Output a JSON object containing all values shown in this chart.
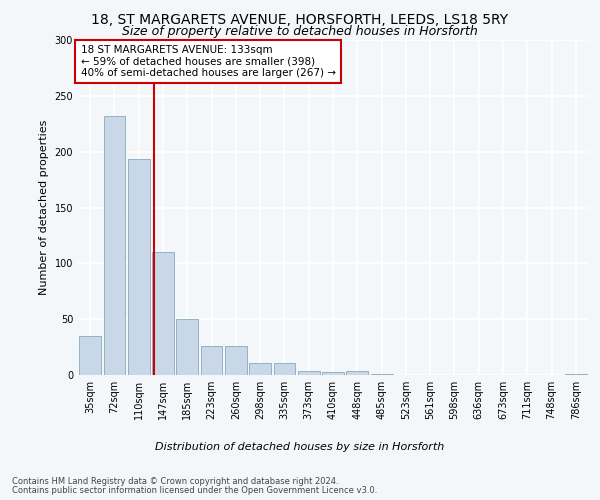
{
  "title1": "18, ST MARGARETS AVENUE, HORSFORTH, LEEDS, LS18 5RY",
  "title2": "Size of property relative to detached houses in Horsforth",
  "xlabel": "Distribution of detached houses by size in Horsforth",
  "ylabel": "Number of detached properties",
  "bar_labels": [
    "35sqm",
    "72sqm",
    "110sqm",
    "147sqm",
    "185sqm",
    "223sqm",
    "260sqm",
    "298sqm",
    "335sqm",
    "373sqm",
    "410sqm",
    "448sqm",
    "485sqm",
    "523sqm",
    "561sqm",
    "598sqm",
    "636sqm",
    "673sqm",
    "711sqm",
    "748sqm",
    "786sqm"
  ],
  "bar_values": [
    35,
    232,
    193,
    110,
    50,
    26,
    26,
    11,
    11,
    4,
    3,
    4,
    1,
    0,
    0,
    0,
    0,
    0,
    0,
    0,
    1
  ],
  "bar_color": "#c8d8e8",
  "bar_edge_color": "#8aaabb",
  "vline_color": "#cc0000",
  "annotation_text": "18 ST MARGARETS AVENUE: 133sqm\n← 59% of detached houses are smaller (398)\n40% of semi-detached houses are larger (267) →",
  "annotation_box_color": "#ffffff",
  "annotation_box_edge": "#cc0000",
  "ylim": [
    0,
    300
  ],
  "yticks": [
    0,
    50,
    100,
    150,
    200,
    250,
    300
  ],
  "footer1": "Contains HM Land Registry data © Crown copyright and database right 2024.",
  "footer2": "Contains public sector information licensed under the Open Government Licence v3.0.",
  "bg_color": "#f4f7fa",
  "plot_bg_color": "#f4f7fa",
  "grid_color": "#ffffff",
  "title1_fontsize": 10,
  "title2_fontsize": 9,
  "axis_label_fontsize": 8,
  "tick_fontsize": 7,
  "footer_fontsize": 6,
  "annotation_fontsize": 7.5
}
